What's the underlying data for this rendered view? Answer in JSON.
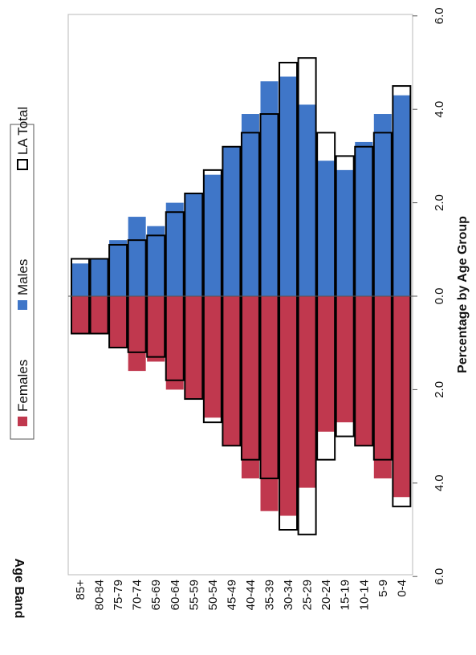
{
  "chart_data": {
    "type": "bar",
    "orientation": "population-pyramid",
    "xlabel": "Age Band",
    "ylabel": "Percentage by Age Group",
    "ylim": [
      -6.0,
      6.0
    ],
    "y_ticks": [
      "6.0",
      "4.0",
      "2.0",
      "0.0",
      "2.0",
      "4.0",
      "6.0"
    ],
    "categories": [
      "85+",
      "80-84",
      "75-79",
      "70-74",
      "65-69",
      "60-64",
      "55-59",
      "50-54",
      "45-49",
      "40-44",
      "35-39",
      "30-34",
      "25-29",
      "20-24",
      "15-19",
      "10-14",
      "5-9",
      "0-4"
    ],
    "series": [
      {
        "name": "Females",
        "color": "#c0384e",
        "values": [
          0.8,
          0.8,
          1.1,
          1.6,
          1.4,
          2.0,
          2.2,
          2.6,
          3.2,
          3.9,
          4.6,
          4.7,
          4.1,
          2.9,
          2.7,
          3.2,
          3.9,
          4.3
        ]
      },
      {
        "name": "Males",
        "color": "#3f76c8",
        "values": [
          0.7,
          0.8,
          1.2,
          1.7,
          1.5,
          2.0,
          2.2,
          2.6,
          3.2,
          3.9,
          4.6,
          4.7,
          4.1,
          2.9,
          2.7,
          3.3,
          3.9,
          4.3
        ]
      },
      {
        "name": "LA Total",
        "color": "#000000",
        "style": "outline",
        "values": [
          0.8,
          0.8,
          1.1,
          1.2,
          1.3,
          1.8,
          2.2,
          2.7,
          3.2,
          3.5,
          3.9,
          5.0,
          5.1,
          3.5,
          3.0,
          3.2,
          3.5,
          4.5
        ]
      }
    ],
    "legend": {
      "position": "left"
    }
  }
}
